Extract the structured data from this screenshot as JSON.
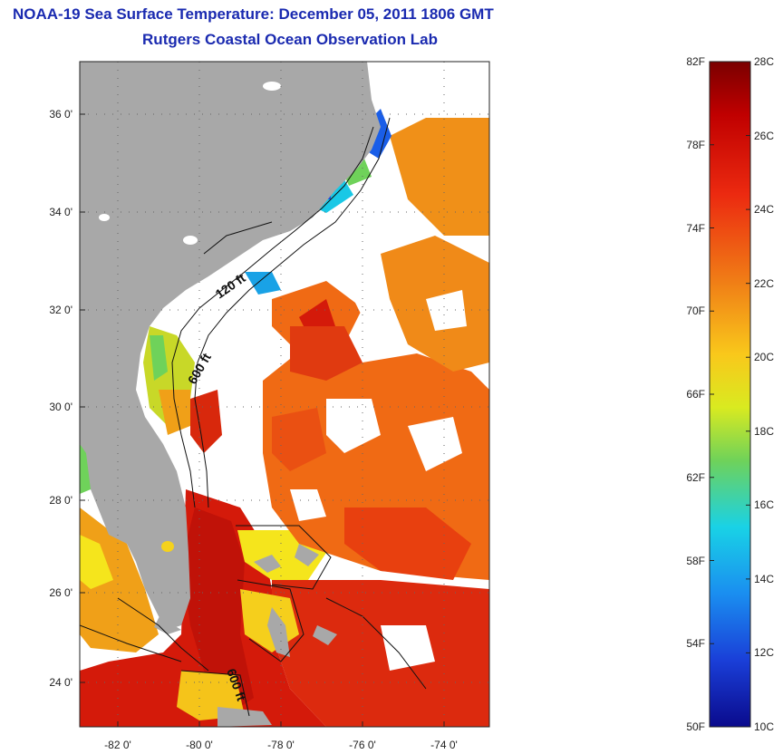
{
  "header": {
    "title": "NOAA-19 Sea Surface Temperature:  December 05, 2011 1806 GMT",
    "subtitle": "Rutgers Coastal Ocean Observation Lab"
  },
  "axes": {
    "lat_labels": [
      "36 0'",
      "34 0'",
      "32 0'",
      "30 0'",
      "28 0'",
      "26 0'",
      "24 0'"
    ],
    "lon_labels": [
      "-82 0'",
      "-80 0'",
      "-78 0'",
      "-76 0'",
      "-74 0'"
    ]
  },
  "contours": {
    "label_120": "120 ft",
    "label_600_north": "600 ft",
    "label_600_south": "600 ft"
  },
  "colorbar": {
    "fahrenheit": [
      "82F",
      "78F",
      "74F",
      "70F",
      "66F",
      "62F",
      "58F",
      "54F",
      "50F"
    ],
    "celsius": [
      "28C",
      "26C",
      "24C",
      "22C",
      "20C",
      "18C",
      "16C",
      "14C",
      "12C",
      "10C"
    ],
    "colors": {
      "dark_red": "#7a0000",
      "red": "#d41a0a",
      "orange": "#f07d16",
      "yellow": "#f5e51c",
      "green": "#6fd25a",
      "cyan": "#19d2e6",
      "blue": "#1a4fe0",
      "dark_blue": "#0a0a8c"
    }
  },
  "colors": {
    "land": "#a8a8a8",
    "title": "#1a2ab0",
    "cloud": "#ffffff"
  }
}
